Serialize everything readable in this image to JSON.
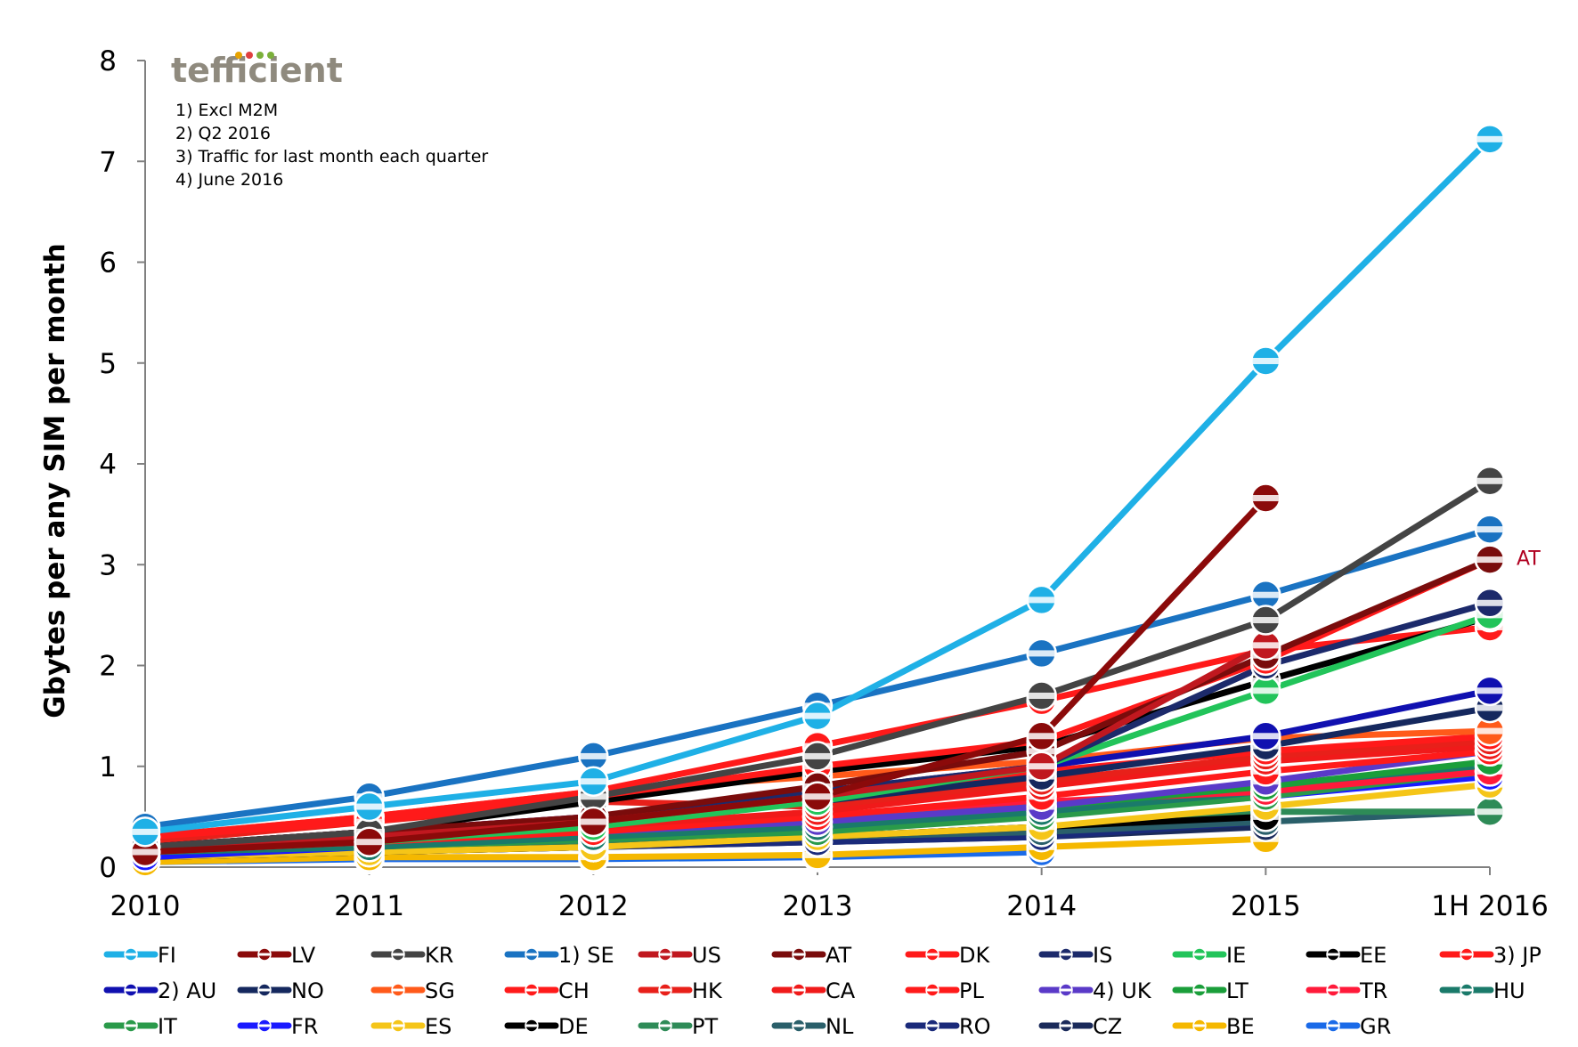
{
  "logo": {
    "text": "tefficient",
    "dot_colors": [
      "#e8a300",
      "#e04040",
      "#7bb03a"
    ]
  },
  "notes": [
    "1) Excl M2M",
    "2) Q2 2016",
    "3) Traffic for last month each quarter",
    "4) June 2016"
  ],
  "chart_data": {
    "type": "line",
    "title": "",
    "xlabel": "",
    "ylabel": "Gbytes per any SIM per month",
    "categories": [
      "2010",
      "2011",
      "2012",
      "2013",
      "2014",
      "2015",
      "1H 2016"
    ],
    "ylim": [
      0,
      8
    ],
    "yticks": [
      0,
      1,
      2,
      3,
      4,
      5,
      6,
      7,
      8
    ],
    "grid": false,
    "legend_position": "bottom",
    "annotations": [
      {
        "text": "AT",
        "series": "AT",
        "x": "1H 2016",
        "y": 3.05
      }
    ],
    "series": [
      {
        "name": "FI",
        "color": "#1fb0e6",
        "values": [
          0.35,
          0.6,
          0.85,
          1.5,
          2.65,
          5.02,
          7.22
        ]
      },
      {
        "name": "LV",
        "color": "#8b0a0a",
        "values": [
          0.15,
          0.25,
          0.45,
          0.7,
          1.3,
          3.66,
          null
        ]
      },
      {
        "name": "KR",
        "color": "#444444",
        "values": [
          0.2,
          0.35,
          0.7,
          1.1,
          1.7,
          2.45,
          3.83
        ]
      },
      {
        "name": "1) SE",
        "color": "#1a73c2",
        "values": [
          0.4,
          0.7,
          1.1,
          1.6,
          2.12,
          2.7,
          3.35
        ]
      },
      {
        "name": "US",
        "color": "#c0181f",
        "values": [
          0.15,
          0.3,
          0.45,
          0.7,
          1.0,
          2.2,
          null
        ]
      },
      {
        "name": "AT",
        "color": "#7a0c0c",
        "values": [
          0.2,
          0.35,
          0.5,
          0.8,
          1.15,
          2.1,
          3.05
        ]
      },
      {
        "name": "DK",
        "color": "#ff1a1a",
        "values": [
          0.3,
          0.45,
          0.7,
          1.0,
          1.25,
          2.05,
          3.05
        ]
      },
      {
        "name": "IS",
        "color": "#1c2a6b",
        "values": [
          0.2,
          0.3,
          0.45,
          0.75,
          1.0,
          2.0,
          2.62
        ]
      },
      {
        "name": "IE",
        "color": "#22c45a",
        "values": [
          0.15,
          0.25,
          0.4,
          0.65,
          1.0,
          1.75,
          2.5
        ]
      },
      {
        "name": "EE",
        "color": "#000000",
        "values": [
          0.2,
          0.35,
          0.65,
          0.95,
          1.2,
          1.85,
          2.48
        ]
      },
      {
        "name": "3) JP",
        "color": "#ff1a1a",
        "values": [
          0.3,
          0.5,
          0.75,
          1.2,
          1.65,
          2.15,
          2.38
        ]
      },
      {
        "name": "2) AU",
        "color": "#1010b0",
        "values": [
          0.2,
          0.35,
          0.5,
          0.75,
          1.0,
          1.3,
          1.75
        ]
      },
      {
        "name": "NO",
        "color": "#15285e",
        "values": [
          0.15,
          0.3,
          0.45,
          0.65,
          0.9,
          1.2,
          1.58
        ]
      },
      {
        "name": "SG",
        "color": "#ff5a1a",
        "values": [
          0.3,
          0.5,
          0.75,
          0.9,
          1.05,
          1.28,
          1.35
        ]
      },
      {
        "name": "CH",
        "color": "#ff1a1a",
        "values": [
          0.2,
          0.35,
          0.5,
          0.7,
          0.95,
          1.15,
          1.3
        ]
      },
      {
        "name": "HK",
        "color": "#e8201a",
        "values": [
          0.25,
          0.45,
          0.65,
          0.6,
          0.85,
          1.1,
          1.25
        ]
      },
      {
        "name": "CA",
        "color": "#f01a1a",
        "values": [
          0.2,
          0.3,
          0.4,
          0.55,
          0.8,
          1.05,
          1.2
        ]
      },
      {
        "name": "PL",
        "color": "#ff1a1a",
        "values": [
          0.15,
          0.25,
          0.35,
          0.5,
          0.7,
          0.95,
          1.15
        ]
      },
      {
        "name": "4) UK",
        "color": "#5a3ac8",
        "values": [
          0.15,
          0.25,
          0.35,
          0.45,
          0.6,
          0.85,
          1.15
        ]
      },
      {
        "name": "LT",
        "color": "#1a9e3a",
        "values": [
          0.15,
          0.25,
          0.35,
          0.45,
          0.6,
          0.8,
          1.05
        ]
      },
      {
        "name": "TR",
        "color": "#ff1a3a",
        "values": [
          0.15,
          0.25,
          0.35,
          0.5,
          0.65,
          0.75,
          0.95
        ]
      },
      {
        "name": "HU",
        "color": "#1a7a6a",
        "values": [
          0.15,
          0.2,
          0.3,
          0.4,
          0.55,
          0.75,
          1.0
        ]
      },
      {
        "name": "IT",
        "color": "#2a9a4a",
        "values": [
          0.15,
          0.2,
          0.28,
          0.35,
          0.5,
          0.7,
          0.95
        ]
      },
      {
        "name": "FR",
        "color": "#1a1aff",
        "values": [
          0.1,
          0.2,
          0.3,
          0.4,
          0.55,
          0.7,
          0.9
        ]
      },
      {
        "name": "ES",
        "color": "#f5c518",
        "values": [
          0.1,
          0.15,
          0.2,
          0.3,
          0.4,
          0.6,
          0.82
        ]
      },
      {
        "name": "DE",
        "color": "#000000",
        "values": [
          0.1,
          0.15,
          0.2,
          0.3,
          0.4,
          0.5,
          null
        ]
      },
      {
        "name": "PT",
        "color": "#2e8b57",
        "values": [
          0.15,
          0.2,
          0.25,
          0.3,
          0.4,
          0.55,
          0.55
        ]
      },
      {
        "name": "NL",
        "color": "#2a5f6a",
        "values": [
          0.15,
          0.2,
          0.25,
          0.3,
          0.35,
          0.45,
          0.55
        ]
      },
      {
        "name": "RO",
        "color": "#1a2a7a",
        "values": [
          0.1,
          0.15,
          0.2,
          0.25,
          0.3,
          0.45,
          null
        ]
      },
      {
        "name": "CZ",
        "color": "#1a2a5a",
        "values": [
          0.1,
          0.15,
          0.2,
          0.25,
          0.3,
          0.4,
          null
        ]
      },
      {
        "name": "BE",
        "color": "#f5b800",
        "values": [
          0.05,
          0.1,
          0.1,
          0.12,
          0.2,
          0.28,
          null
        ]
      },
      {
        "name": "GR",
        "color": "#1a6ae8",
        "values": [
          0.05,
          0.08,
          0.08,
          0.1,
          0.15,
          null,
          null
        ]
      }
    ]
  }
}
